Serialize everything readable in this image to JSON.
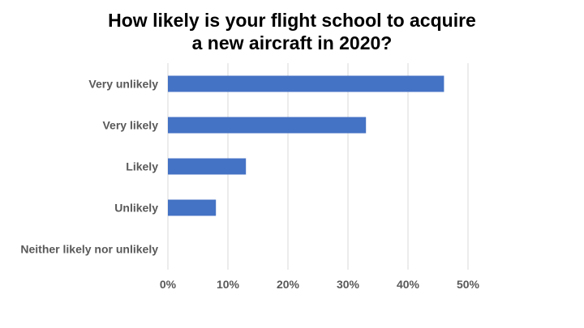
{
  "chart_data": {
    "type": "bar",
    "orientation": "horizontal",
    "title_lines": [
      "How likely is your flight school to acquire",
      "a new aircraft in 2020?"
    ],
    "categories": [
      "Very unlikely",
      "Very likely",
      "Likely",
      "Unlikely",
      "Neither likely nor unlikely"
    ],
    "values": [
      46,
      33,
      13,
      8,
      0
    ],
    "xlim": [
      0,
      50
    ],
    "x_ticks": [
      0,
      10,
      20,
      30,
      40,
      50
    ],
    "x_tick_labels": [
      "0%",
      "10%",
      "20%",
      "30%",
      "40%",
      "50%"
    ],
    "grid": "vertical",
    "legend": "none",
    "bar_color": "#4472C4",
    "grid_color": "#D9D9D9"
  }
}
